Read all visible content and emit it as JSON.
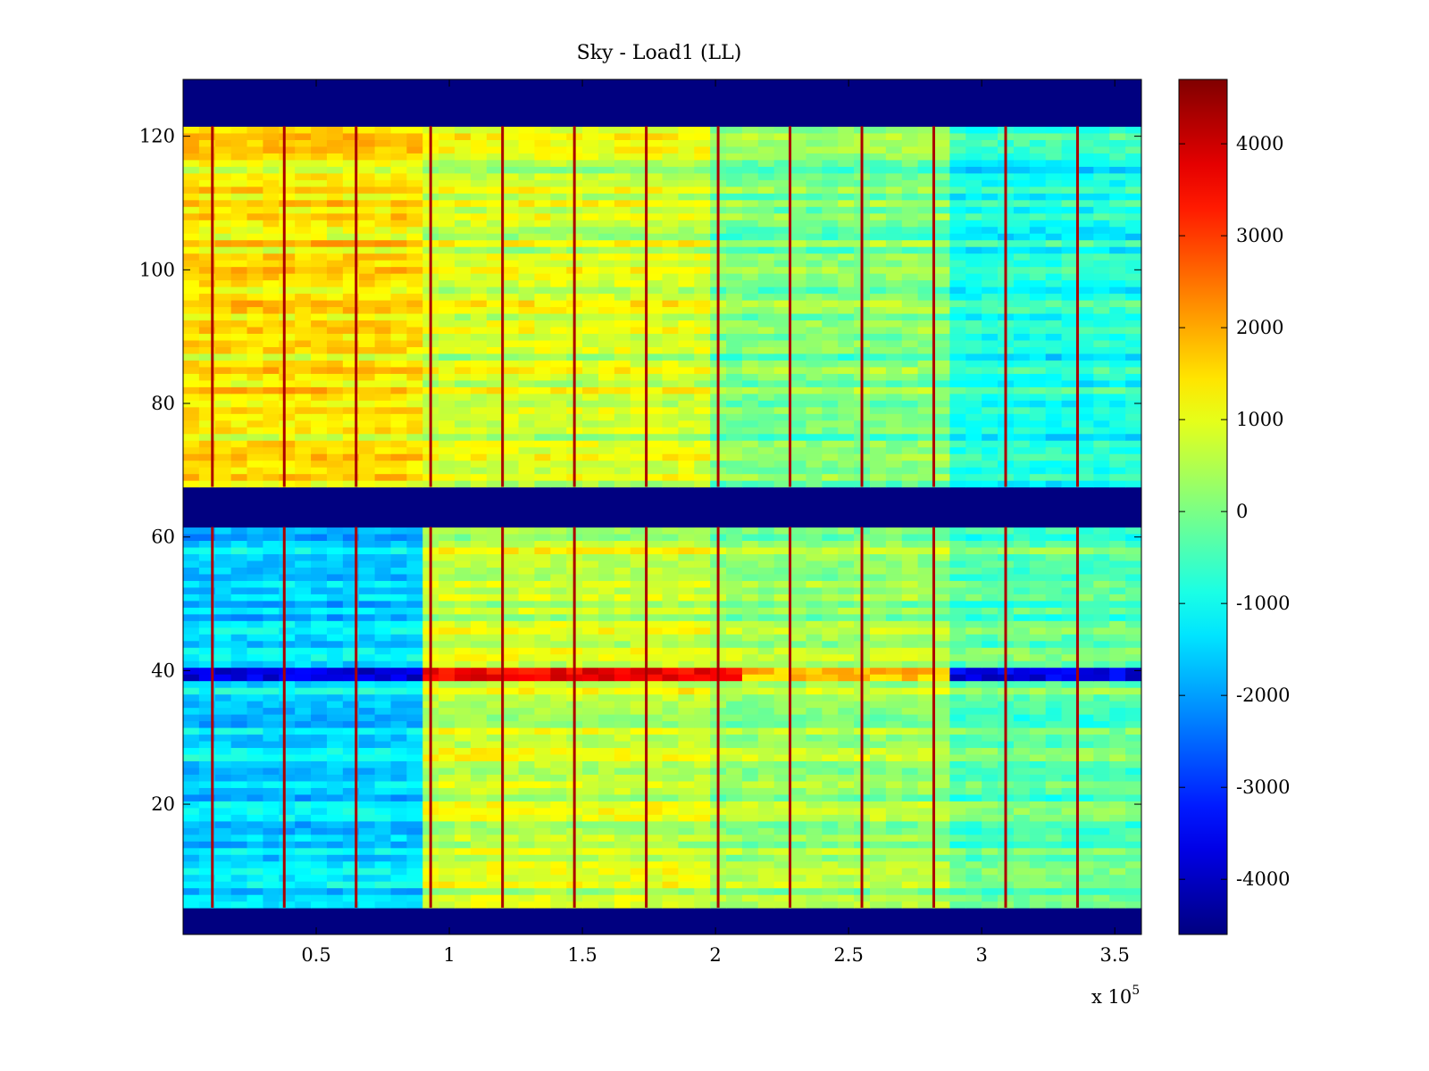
{
  "chart_data": {
    "type": "heatmap",
    "title": "Sky - Load1 (LL)",
    "xlabel": "",
    "ylabel": "",
    "x_multiplier_label": "x 10",
    "x_multiplier_exponent": "5",
    "xlim": [
      0,
      360000
    ],
    "ylim": [
      1,
      128
    ],
    "x_ticks": [
      {
        "value": 50000,
        "label": "0.5"
      },
      {
        "value": 100000,
        "label": "1"
      },
      {
        "value": 150000,
        "label": "1.5"
      },
      {
        "value": 200000,
        "label": "2"
      },
      {
        "value": 250000,
        "label": "2.5"
      },
      {
        "value": 300000,
        "label": "3"
      },
      {
        "value": 350000,
        "label": "3.5"
      }
    ],
    "y_ticks": [
      {
        "value": 20,
        "label": "20"
      },
      {
        "value": 40,
        "label": "40"
      },
      {
        "value": 60,
        "label": "60"
      },
      {
        "value": 80,
        "label": "80"
      },
      {
        "value": 100,
        "label": "100"
      },
      {
        "value": 120,
        "label": "120"
      }
    ],
    "colorbar": {
      "colormap": "jet",
      "clim": [
        -4600,
        4700
      ],
      "ticks": [
        {
          "value": 4000,
          "label": "4000"
        },
        {
          "value": 3000,
          "label": "3000"
        },
        {
          "value": 2000,
          "label": "2000"
        },
        {
          "value": 1000,
          "label": "1000"
        },
        {
          "value": 0,
          "label": "0"
        },
        {
          "value": -1000,
          "label": "-1000"
        },
        {
          "value": -2000,
          "label": "-2000"
        },
        {
          "value": -3000,
          "label": "-3000"
        },
        {
          "value": -4000,
          "label": "-4000"
        }
      ]
    },
    "masked_channels": [
      [
        1,
        4
      ],
      [
        62,
        67
      ],
      [
        122,
        128
      ]
    ],
    "masked_value": -4600,
    "x_segments": [
      {
        "x0": 0,
        "x1": 93000,
        "y0": 5,
        "y1": 61,
        "value": -1500
      },
      {
        "x0": 0,
        "x1": 93000,
        "y0": 68,
        "y1": 121,
        "value": 1400
      },
      {
        "x0": 93000,
        "x1": 200000,
        "y0": 5,
        "y1": 61,
        "value": 700
      },
      {
        "x0": 93000,
        "x1": 200000,
        "y0": 68,
        "y1": 121,
        "value": 800
      },
      {
        "x0": 200000,
        "x1": 290000,
        "y0": 5,
        "y1": 61,
        "value": 300
      },
      {
        "x0": 200000,
        "x1": 290000,
        "y0": 68,
        "y1": 121,
        "value": 0
      },
      {
        "x0": 290000,
        "x1": 360000,
        "y0": 5,
        "y1": 61,
        "value": -300
      },
      {
        "x0": 290000,
        "x1": 360000,
        "y0": 68,
        "y1": 121,
        "value": -900
      }
    ],
    "channel_40_band": [
      {
        "x0": 0,
        "x1": 93000,
        "value": -3800
      },
      {
        "x0": 93000,
        "x1": 210000,
        "value": 3600
      },
      {
        "x0": 210000,
        "x1": 290000,
        "value": 1800
      },
      {
        "x0": 290000,
        "x1": 360000,
        "value": -3700
      }
    ],
    "spike_columns_x": [
      11000,
      38000,
      65000,
      93000,
      120000,
      147000,
      174000,
      201000,
      228000,
      255000,
      282000,
      309000,
      336000
    ],
    "spike_value": 4300
  }
}
